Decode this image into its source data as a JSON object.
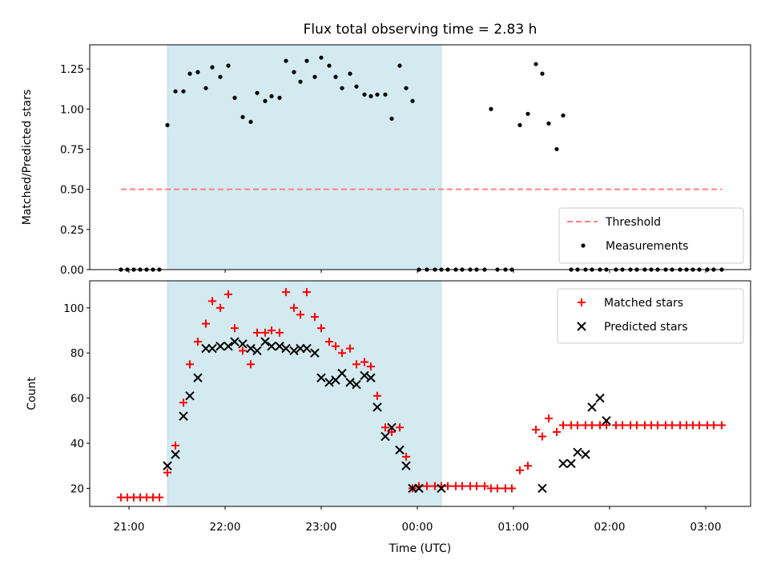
{
  "chart_data": [
    {
      "type": "scatter",
      "title": "Flux total observing time = 2.83 h",
      "xlabel": "",
      "ylabel": "Matched/Predicted stars",
      "ylim": [
        0.0,
        1.4
      ],
      "yticks": [
        "0.00",
        "0.25",
        "0.50",
        "0.75",
        "1.00",
        "1.25"
      ],
      "shaded_region": [
        "21:24",
        "00:15"
      ],
      "shade_color": "#d3eaf0",
      "legend_position": "lower right",
      "series": [
        {
          "name": "Threshold",
          "kind": "dashed-line",
          "color": "#ff8080",
          "x": [
            "20:55",
            "03:10"
          ],
          "y": [
            0.5,
            0.5
          ]
        },
        {
          "name": "Measurements",
          "kind": "dot",
          "color": "#000000",
          "x": [
            "20:55",
            "20:59",
            "21:03",
            "21:07",
            "21:11",
            "21:15",
            "21:19",
            "21:24",
            "21:29",
            "21:34",
            "21:38",
            "21:43",
            "21:48",
            "21:52",
            "21:57",
            "22:02",
            "22:06",
            "22:11",
            "22:16",
            "22:20",
            "22:25",
            "22:29",
            "22:34",
            "22:38",
            "22:43",
            "22:47",
            "22:51",
            "22:56",
            "23:00",
            "23:05",
            "23:09",
            "23:13",
            "23:18",
            "23:22",
            "23:27",
            "23:31",
            "23:35",
            "23:40",
            "23:44",
            "23:49",
            "23:53",
            "23:57",
            "00:01",
            "00:06",
            "00:11",
            "00:15",
            "00:19",
            "00:24",
            "00:28",
            "00:33",
            "00:37",
            "00:42",
            "00:46",
            "00:50",
            "00:55",
            "00:59",
            "01:04",
            "01:09",
            "01:14",
            "01:18",
            "01:22",
            "01:27",
            "01:31",
            "01:36",
            "01:40",
            "01:45",
            "01:49",
            "01:54",
            "01:58",
            "02:04",
            "02:08",
            "02:13",
            "02:17",
            "02:22",
            "02:26",
            "02:30",
            "02:35",
            "02:39",
            "02:44",
            "02:48",
            "02:52",
            "02:56",
            "03:01",
            "03:05",
            "03:10"
          ],
          "y": [
            0,
            0,
            0,
            0,
            0,
            0,
            0,
            0.9,
            1.11,
            1.11,
            1.22,
            1.23,
            1.13,
            1.26,
            1.2,
            1.27,
            1.07,
            0.95,
            0.92,
            1.1,
            1.05,
            1.08,
            1.07,
            1.3,
            1.23,
            1.17,
            1.3,
            1.2,
            1.32,
            1.27,
            1.2,
            1.13,
            1.22,
            1.14,
            1.09,
            1.08,
            1.09,
            1.09,
            0.94,
            1.27,
            1.13,
            1.05,
            0,
            0,
            0,
            0,
            0,
            0,
            0,
            0,
            0,
            0,
            1.0,
            0,
            0,
            0,
            0.9,
            0.97,
            1.28,
            1.22,
            0.91,
            0.75,
            0.96,
            0,
            0,
            0,
            0,
            0,
            0,
            0,
            0,
            0,
            0,
            0,
            0,
            0,
            0,
            0,
            0,
            0,
            0,
            0,
            0,
            0,
            0
          ]
        }
      ]
    },
    {
      "type": "scatter",
      "title": "",
      "xlabel": "Time (UTC)",
      "ylabel": "Count",
      "ylim": [
        12,
        112
      ],
      "yticks": [
        "20",
        "40",
        "60",
        "80",
        "100"
      ],
      "xticks": [
        "21:00",
        "22:00",
        "23:00",
        "00:00",
        "01:00",
        "02:00",
        "03:00"
      ],
      "shaded_region": [
        "21:24",
        "00:15"
      ],
      "shade_color": "#d3eaf0",
      "legend_position": "upper right",
      "series": [
        {
          "name": "Matched stars",
          "marker": "plus",
          "color": "#ff0000",
          "x": [
            "20:55",
            "20:59",
            "21:03",
            "21:07",
            "21:11",
            "21:15",
            "21:19",
            "21:24",
            "21:29",
            "21:34",
            "21:38",
            "21:43",
            "21:48",
            "21:52",
            "21:57",
            "22:02",
            "22:06",
            "22:11",
            "22:16",
            "22:20",
            "22:25",
            "22:29",
            "22:34",
            "22:38",
            "22:43",
            "22:47",
            "22:51",
            "22:56",
            "23:00",
            "23:05",
            "23:09",
            "23:13",
            "23:18",
            "23:22",
            "23:27",
            "23:31",
            "23:35",
            "23:40",
            "23:44",
            "23:49",
            "23:53",
            "23:57",
            "00:01",
            "00:06",
            "00:11",
            "00:15",
            "00:19",
            "00:24",
            "00:28",
            "00:33",
            "00:37",
            "00:42",
            "00:46",
            "00:50",
            "00:55",
            "00:59",
            "01:04",
            "01:09",
            "01:14",
            "01:18",
            "01:22",
            "01:27",
            "01:31",
            "01:36",
            "01:40",
            "01:45",
            "01:49",
            "01:54",
            "01:58",
            "02:04",
            "02:08",
            "02:13",
            "02:17",
            "02:22",
            "02:26",
            "02:30",
            "02:35",
            "02:39",
            "02:44",
            "02:48",
            "02:52",
            "02:56",
            "03:01",
            "03:05",
            "03:10"
          ],
          "y": [
            16,
            16,
            16,
            16,
            16,
            16,
            16,
            27,
            39,
            58,
            75,
            85,
            93,
            103,
            100,
            106,
            91,
            81,
            75,
            89,
            89,
            90,
            89,
            107,
            100,
            97,
            107,
            96,
            91,
            85,
            83,
            80,
            82,
            75,
            76,
            74,
            61,
            47,
            45,
            47,
            34,
            20,
            21,
            21,
            21,
            21,
            21,
            21,
            21,
            21,
            21,
            21,
            20,
            20,
            20,
            20,
            28,
            30,
            46,
            43,
            51,
            45,
            48,
            48,
            48,
            48,
            48,
            48,
            48,
            48,
            48,
            48,
            48,
            48,
            48,
            48,
            48,
            48,
            48,
            48,
            48,
            48,
            48,
            48,
            48
          ]
        },
        {
          "name": "Predicted stars",
          "marker": "x",
          "color": "#000000",
          "x": [
            "21:24",
            "21:29",
            "21:34",
            "21:38",
            "21:43",
            "21:48",
            "21:52",
            "21:57",
            "22:02",
            "22:06",
            "22:11",
            "22:16",
            "22:20",
            "22:25",
            "22:29",
            "22:34",
            "22:38",
            "22:43",
            "22:47",
            "22:51",
            "22:56",
            "23:00",
            "23:05",
            "23:09",
            "23:13",
            "23:18",
            "23:22",
            "23:27",
            "23:31",
            "23:35",
            "23:40",
            "23:44",
            "23:49",
            "23:53",
            "23:57",
            "00:01",
            "00:15",
            "01:18",
            "01:31",
            "01:36",
            "01:40",
            "01:45",
            "01:49",
            "01:54",
            "01:58"
          ],
          "y": [
            30,
            35,
            52,
            61,
            69,
            82,
            82,
            83,
            83,
            85,
            84,
            82,
            81,
            85,
            83,
            83,
            82,
            81,
            82,
            82,
            80,
            69,
            67,
            68,
            71,
            67,
            66,
            70,
            69,
            56,
            43,
            47,
            37,
            30,
            20,
            20,
            20,
            20,
            31,
            31,
            36,
            35,
            56,
            60,
            50
          ]
        }
      ]
    }
  ]
}
